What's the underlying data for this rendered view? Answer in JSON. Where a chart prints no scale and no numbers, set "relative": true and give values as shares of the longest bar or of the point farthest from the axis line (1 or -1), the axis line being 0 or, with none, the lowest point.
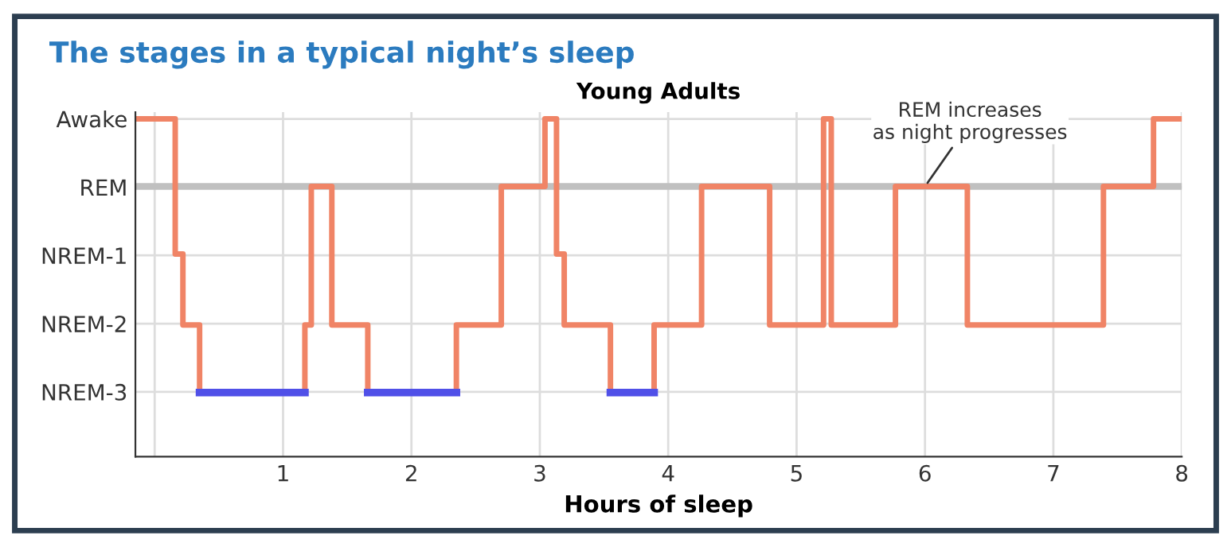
{
  "chart_data": {
    "type": "step",
    "relative": true,
    "title": "The stages in a typical night’s sleep",
    "subtitle": "Young Adults",
    "xlabel": "Hours of sleep",
    "series": [
      {
        "color": "#f08466",
        "x": [
          -0.15,
          0.16,
          0.22,
          0.35,
          1.17,
          1.22,
          1.38,
          1.66,
          2.35,
          2.7,
          3.04,
          3.13,
          3.19,
          3.55,
          3.89,
          4.26,
          4.79,
          5.21,
          5.27,
          5.77,
          6.33,
          7.39,
          7.78,
          8
        ],
        "values": [
          1,
          0.6,
          0.39,
          0.19,
          0.39,
          0.8,
          0.39,
          0.19,
          0.39,
          0.8,
          1,
          0.6,
          0.39,
          0.19,
          0.39,
          0.8,
          0.39,
          1,
          0.39,
          0.8,
          0.39,
          0.8,
          1,
          1
        ]
      },
      {
        "type": "line",
        "color": "#5050e8",
        "x": [
          0.35,
          1.17,
          null,
          1.66,
          2.35,
          null,
          3.55,
          3.89
        ],
        "values": [
          0.19,
          0.19,
          null,
          0.19,
          0.19,
          null,
          0.19,
          0.19
        ]
      }
    ],
    "xlim": [
      -0.15,
      8
    ],
    "xticks": [
      {
        "value": 0,
        "label": null
      },
      1,
      2,
      3,
      4,
      5,
      6,
      7,
      8
    ],
    "y_categories": [
      "Awake",
      "REM",
      "NREM-1",
      "NREM-2",
      "NREM-3"
    ],
    "ref_lines": [
      {
        "axis": "y",
        "value": 0.8,
        "color": "#c0c0c0"
      }
    ],
    "annotations": [
      {
        "text": "REM increases\nas night progresses",
        "x": 6.0,
        "y": 0.8
      }
    ],
    "grid": true,
    "legend": false
  }
}
